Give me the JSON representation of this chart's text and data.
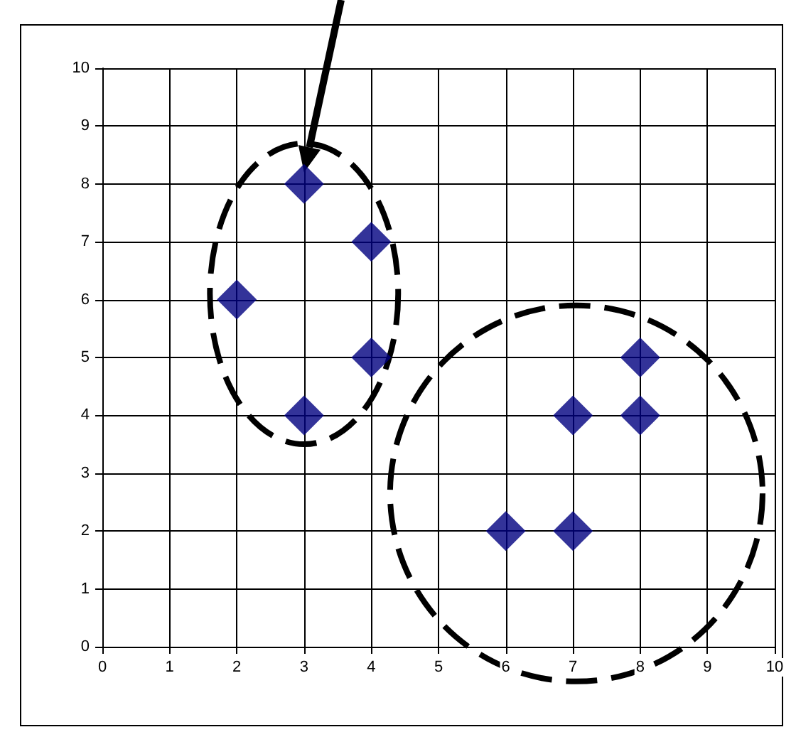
{
  "chart_data": {
    "type": "scatter",
    "x": [
      3,
      4,
      2,
      4,
      3,
      8,
      7,
      8,
      6,
      7
    ],
    "values": [
      8,
      7,
      6,
      5,
      4,
      5,
      4,
      4,
      2,
      2
    ],
    "color": "#000080",
    "marker": "diamond",
    "xlim": [
      0,
      10
    ],
    "xticks": [
      0,
      1,
      2,
      3,
      4,
      5,
      6,
      7,
      8,
      9,
      10
    ],
    "ylim": [
      0,
      10
    ],
    "yticks": [
      0,
      1,
      2,
      3,
      4,
      5,
      6,
      7,
      8,
      9,
      10
    ],
    "grid": true
  }
}
